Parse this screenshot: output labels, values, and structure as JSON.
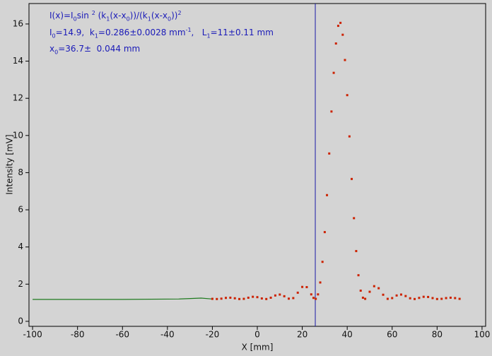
{
  "chart_data": {
    "type": "line",
    "xlabel": "X [mm]",
    "ylabel": "Intensity [mV]",
    "xlim": [
      -101.6,
      101.6
    ],
    "ylim": [
      -0.27,
      17.1
    ],
    "xticks": [
      -100,
      -80,
      -60,
      -40,
      -20,
      0,
      20,
      40,
      60,
      80,
      100
    ],
    "yticks": [
      0,
      2,
      4,
      6,
      8,
      10,
      12,
      14,
      16
    ],
    "cursor_x": 25.8,
    "cursor_color": "#1a1aa8",
    "annotations": [
      [
        "I(x)=I",
        "0",
        "sin ",
        "2",
        " (k",
        "1",
        "(x-x",
        "0",
        "))/(k",
        "1",
        "(x-x",
        "0",
        "))",
        "2"
      ],
      [
        "I",
        "0",
        "=14.9,  k",
        "1",
        "=0.286±0.0028 mm",
        "-1",
        ",   L",
        "1",
        "=11±0.11 mm"
      ],
      [
        "x",
        "0",
        "=36.7±  0.044 mm"
      ]
    ],
    "series": [
      {
        "color": "#1e7a1e",
        "style": "line",
        "x": [
          -100,
          -60,
          -35,
          -25,
          -20
        ],
        "values": [
          1.18,
          1.18,
          1.2,
          1.25,
          1.2
        ]
      },
      {
        "color": "#cc2200",
        "style": "markers",
        "x": [
          -20,
          -18,
          -16,
          -14,
          -12,
          -10,
          -8,
          -6,
          -4,
          -2,
          0,
          2,
          4,
          6,
          8,
          10,
          12,
          14,
          16,
          18,
          20,
          22,
          24,
          25,
          26,
          27,
          28,
          29,
          30,
          31,
          32,
          33,
          34,
          35,
          36,
          37,
          38,
          39,
          40,
          41,
          42,
          43,
          44,
          45,
          46,
          47,
          48,
          50,
          52,
          54,
          56,
          58,
          60,
          62,
          64,
          66,
          68,
          70,
          72,
          74,
          76,
          78,
          80,
          82,
          84,
          86,
          88,
          90
        ],
        "values": [
          1.21,
          1.2,
          1.22,
          1.26,
          1.27,
          1.24,
          1.2,
          1.21,
          1.27,
          1.32,
          1.3,
          1.23,
          1.2,
          1.27,
          1.39,
          1.44,
          1.35,
          1.22,
          1.25,
          1.54,
          1.85,
          1.84,
          1.45,
          1.26,
          1.21,
          1.45,
          2.09,
          3.2,
          4.8,
          6.79,
          9.03,
          11.29,
          13.37,
          14.95,
          15.9,
          16.06,
          15.42,
          14.06,
          12.17,
          9.95,
          7.66,
          5.55,
          3.78,
          2.48,
          1.65,
          1.27,
          1.21,
          1.59,
          1.89,
          1.78,
          1.43,
          1.21,
          1.25,
          1.39,
          1.44,
          1.36,
          1.24,
          1.2,
          1.26,
          1.32,
          1.31,
          1.25,
          1.2,
          1.21,
          1.25,
          1.27,
          1.25,
          1.21
        ]
      }
    ]
  }
}
